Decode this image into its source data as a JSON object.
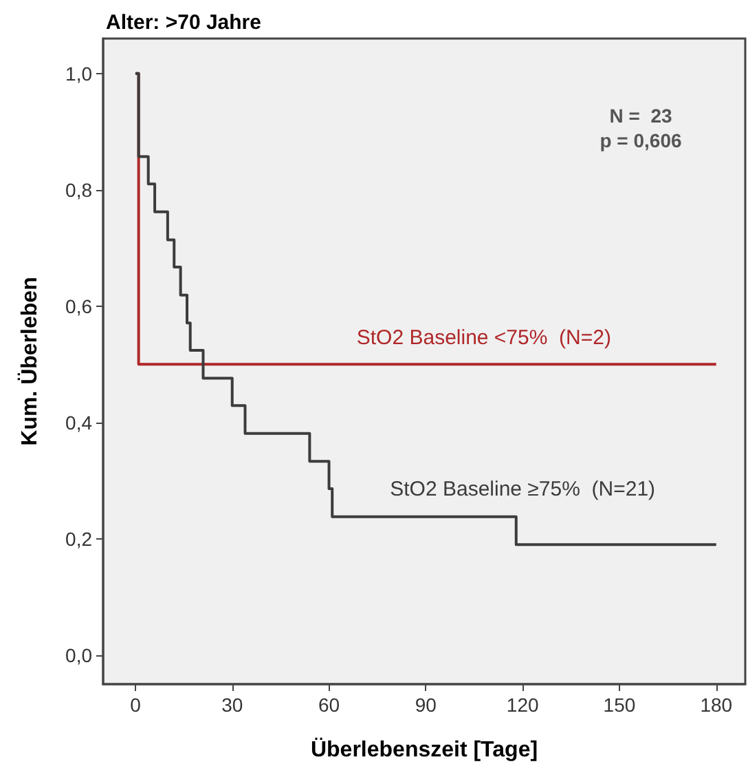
{
  "chart_data": {
    "type": "step",
    "title": "Alter: >70 Jahre",
    "xlabel": "Überlebenszeit [Tage]",
    "ylabel": "Kum. Überleben",
    "xlim": [
      -10,
      189
    ],
    "xticks": [
      0,
      30,
      60,
      90,
      120,
      150,
      180
    ],
    "ylim": [
      -0.05,
      1.06
    ],
    "yticks": [
      {
        "value": 0,
        "label": "0,0"
      },
      {
        "value": 0.2,
        "label": "0,2"
      },
      {
        "value": 0.4,
        "label": "0,4"
      },
      {
        "value": 0.6,
        "label": "0,6"
      },
      {
        "value": 0.8,
        "label": "0,8"
      },
      {
        "value": 1,
        "label": "1,0"
      }
    ],
    "grid": false,
    "legend": false,
    "annotations": [
      "N =  23",
      "p = 0,606"
    ],
    "series": [
      {
        "name": "StO2 Baseline <75%  (N=2)",
        "color": "#b0282a",
        "x": [
          0,
          1,
          180
        ],
        "values": [
          1,
          0.5,
          0.5
        ]
      },
      {
        "name": "StO2 Baseline ≥75%  (N=21)",
        "color": "#3c3c3c",
        "x": [
          0,
          1,
          4,
          6,
          10,
          12,
          14,
          16,
          17,
          21,
          30,
          34,
          54,
          60,
          61,
          118,
          180
        ],
        "values": [
          1,
          0.857,
          0.81,
          0.762,
          0.714,
          0.667,
          0.619,
          0.571,
          0.524,
          0.476,
          0.429,
          0.381,
          0.333,
          0.286,
          0.238,
          0.19,
          0.19
        ]
      }
    ]
  }
}
